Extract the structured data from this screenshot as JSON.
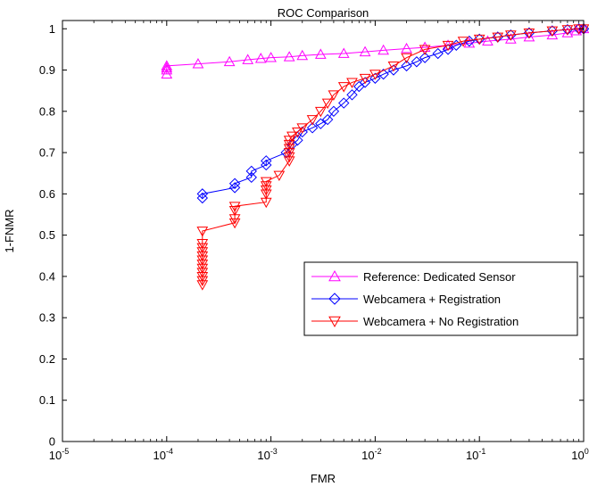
{
  "chart_data": {
    "type": "line",
    "title": "ROC Comparison",
    "xlabel": "FMR",
    "ylabel": "1-FNMR",
    "xscale": "log",
    "xlim": [
      1e-05,
      1
    ],
    "ylim": [
      0,
      1.02
    ],
    "x_ticks": [
      {
        "base": "10",
        "exp": "-5"
      },
      {
        "base": "10",
        "exp": "-4"
      },
      {
        "base": "10",
        "exp": "-3"
      },
      {
        "base": "10",
        "exp": "-2"
      },
      {
        "base": "10",
        "exp": "-1"
      },
      {
        "base": "10",
        "exp": "0"
      }
    ],
    "y_ticks": [
      "0",
      "0.1",
      "0.2",
      "0.3",
      "0.4",
      "0.5",
      "0.6",
      "0.7",
      "0.8",
      "0.9",
      "1"
    ],
    "grid": false,
    "legend_position": "center-right",
    "series": [
      {
        "name": "Reference: Dedicated Sensor",
        "color": "#ff00ff",
        "marker": "triangle-up",
        "x": [
          0.0001,
          0.0001,
          0.0001,
          0.0001,
          0.0002,
          0.0004,
          0.0006,
          0.0008,
          0.001,
          0.0015,
          0.002,
          0.003,
          0.005,
          0.008,
          0.012,
          0.02,
          0.03,
          0.05,
          0.08,
          0.12,
          0.2,
          0.3,
          0.5,
          0.7,
          0.85,
          1
        ],
        "y": [
          0.89,
          0.9,
          0.905,
          0.91,
          0.915,
          0.92,
          0.925,
          0.928,
          0.93,
          0.932,
          0.935,
          0.938,
          0.94,
          0.944,
          0.948,
          0.952,
          0.955,
          0.96,
          0.965,
          0.97,
          0.975,
          0.98,
          0.985,
          0.99,
          0.995,
          1.0
        ]
      },
      {
        "name": "Webcamera + Registration",
        "color": "#0000ff",
        "marker": "diamond",
        "x": [
          0.00022,
          0.00022,
          0.00045,
          0.00045,
          0.00065,
          0.00065,
          0.0009,
          0.0009,
          0.0014,
          0.0016,
          0.0018,
          0.002,
          0.0025,
          0.003,
          0.0035,
          0.004,
          0.005,
          0.006,
          0.007,
          0.008,
          0.01,
          0.012,
          0.015,
          0.02,
          0.025,
          0.03,
          0.04,
          0.05,
          0.06,
          0.08,
          0.1,
          0.15,
          0.2,
          0.3,
          0.5,
          0.7,
          0.9,
          1
        ],
        "y": [
          0.59,
          0.6,
          0.615,
          0.625,
          0.64,
          0.655,
          0.67,
          0.68,
          0.7,
          0.72,
          0.73,
          0.75,
          0.76,
          0.77,
          0.78,
          0.8,
          0.82,
          0.84,
          0.86,
          0.87,
          0.88,
          0.89,
          0.9,
          0.91,
          0.92,
          0.93,
          0.94,
          0.95,
          0.96,
          0.97,
          0.975,
          0.98,
          0.985,
          0.99,
          0.995,
          0.998,
          1.0,
          1.0
        ]
      },
      {
        "name": "Webcamera + No Registration",
        "color": "#ff0000",
        "marker": "triangle-down",
        "x": [
          0.00022,
          0.00022,
          0.00022,
          0.00022,
          0.00022,
          0.00022,
          0.00022,
          0.00022,
          0.00022,
          0.00022,
          0.00022,
          0.00022,
          0.00045,
          0.00045,
          0.00045,
          0.00045,
          0.0009,
          0.0009,
          0.0009,
          0.0009,
          0.0009,
          0.0012,
          0.0015,
          0.0015,
          0.0015,
          0.0015,
          0.0015,
          0.0015,
          0.0016,
          0.0018,
          0.002,
          0.0025,
          0.003,
          0.0035,
          0.004,
          0.005,
          0.006,
          0.008,
          0.01,
          0.015,
          0.02,
          0.03,
          0.05,
          0.07,
          0.1,
          0.15,
          0.2,
          0.3,
          0.5,
          0.7,
          0.9,
          1
        ],
        "y": [
          0.38,
          0.39,
          0.4,
          0.41,
          0.42,
          0.43,
          0.44,
          0.45,
          0.46,
          0.47,
          0.48,
          0.51,
          0.53,
          0.54,
          0.56,
          0.57,
          0.58,
          0.6,
          0.61,
          0.62,
          0.63,
          0.645,
          0.68,
          0.69,
          0.7,
          0.71,
          0.72,
          0.73,
          0.74,
          0.75,
          0.76,
          0.78,
          0.8,
          0.82,
          0.84,
          0.86,
          0.87,
          0.88,
          0.89,
          0.91,
          0.93,
          0.95,
          0.96,
          0.97,
          0.975,
          0.98,
          0.985,
          0.99,
          0.995,
          0.998,
          1.0,
          1.0
        ]
      }
    ]
  }
}
